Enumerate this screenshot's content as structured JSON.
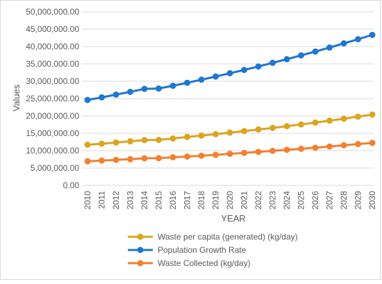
{
  "chart_data": {
    "type": "line",
    "title": "",
    "xlabel": "YEAR",
    "ylabel": "Values",
    "ylim": [
      0,
      50000000
    ],
    "y_tick_step": 5000000,
    "y_tick_labels": [
      "0.00",
      "5,000,000.00",
      "10,000,000.00",
      "15,000,000.00",
      "20,000,000.00",
      "25,000,000.00",
      "30,000,000.00",
      "35,000,000.00",
      "40,000,000.00",
      "45,000,000.00",
      "50,000,000.00"
    ],
    "grid": true,
    "legend_position": "bottom",
    "categories": [
      "2010",
      "2011",
      "2012",
      "2013",
      "2014",
      "2015",
      "2016",
      "2017",
      "2018",
      "2019",
      "2020",
      "2021",
      "2022",
      "2023",
      "2024",
      "2025",
      "2026",
      "2027",
      "2028",
      "2029",
      "2030"
    ],
    "series": [
      {
        "name": "Waste per capita (generated) (kg/day)",
        "color": "#DAA520",
        "values": [
          11700000,
          12000000,
          12350000,
          12700000,
          13050000,
          13100000,
          13500000,
          13950000,
          14350000,
          14750000,
          15200000,
          15650000,
          16100000,
          16550000,
          17050000,
          17550000,
          18100000,
          18650000,
          19200000,
          19800000,
          20400000
        ]
      },
      {
        "name": "Population Growth Rate",
        "color": "#1F77D0",
        "values": [
          24600000,
          25350000,
          26150000,
          26950000,
          27800000,
          27900000,
          28700000,
          29550000,
          30450000,
          31350000,
          32300000,
          33250000,
          34250000,
          35300000,
          36350000,
          37450000,
          38550000,
          39700000,
          40900000,
          42100000,
          43350000
        ]
      },
      {
        "name": "Waste Collected (kg/day)",
        "color": "#F28030",
        "values": [
          6950000,
          7150000,
          7350000,
          7550000,
          7800000,
          7850000,
          8100000,
          8300000,
          8550000,
          8800000,
          9100000,
          9350000,
          9650000,
          9950000,
          10250000,
          10550000,
          10850000,
          11200000,
          11550000,
          11900000,
          12250000
        ]
      }
    ]
  }
}
